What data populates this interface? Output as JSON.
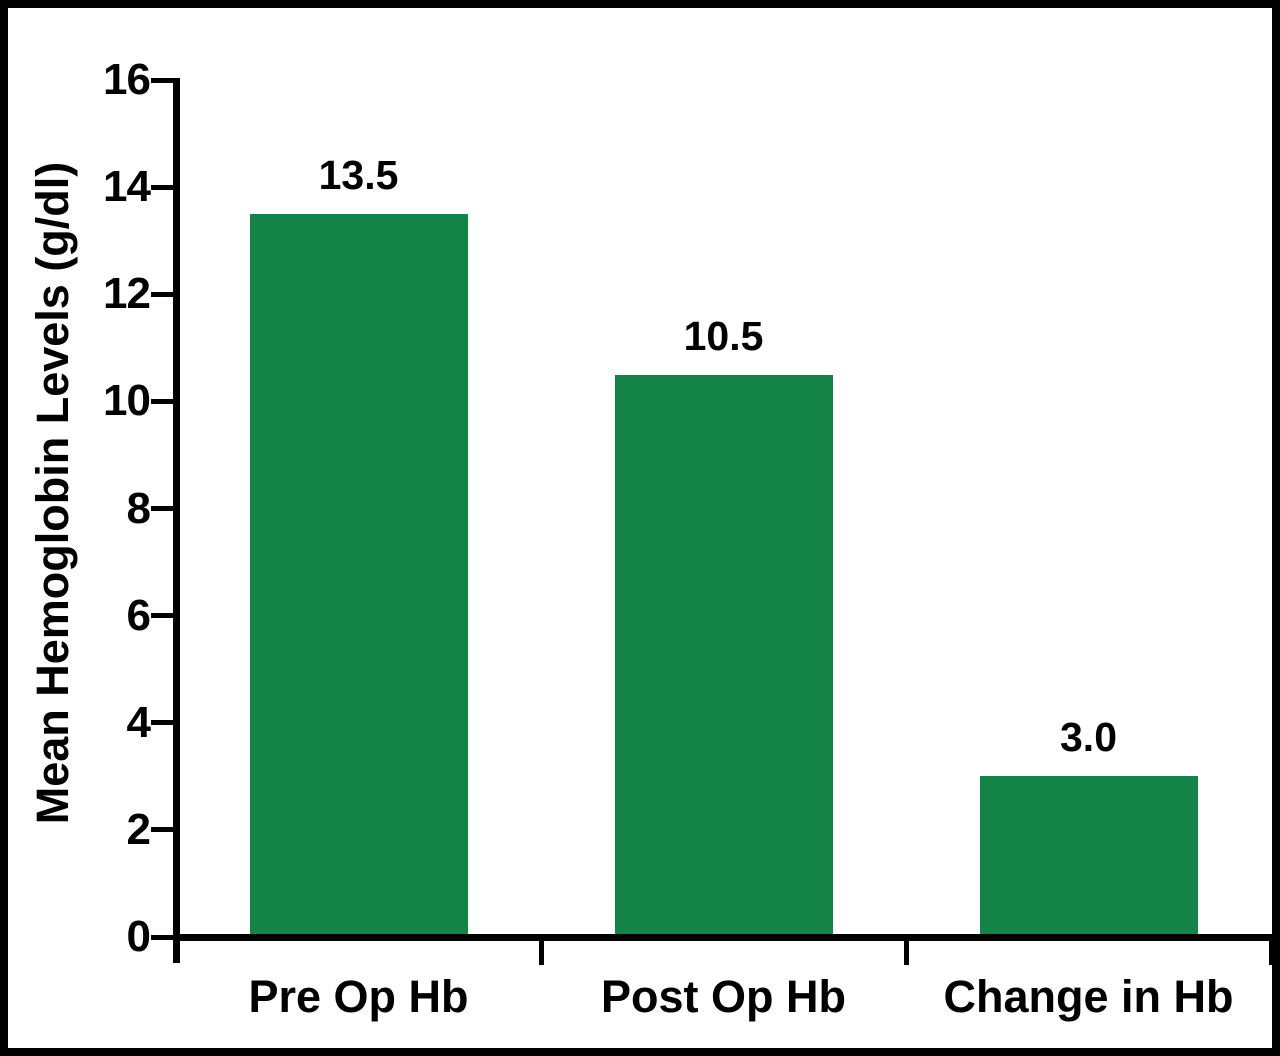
{
  "chart_data": {
    "type": "bar",
    "title": "",
    "categories": [
      "Pre Op Hb",
      "Post Op Hb",
      "Change in Hb"
    ],
    "values": [
      13.5,
      10.5,
      3.0
    ],
    "value_labels": [
      "13.5",
      "10.5",
      "3.0"
    ],
    "xlabel": "",
    "ylabel": "Mean Hemoglobin Levels (g/dl)",
    "ylim": [
      0,
      16
    ],
    "yticks": [
      0,
      2,
      4,
      6,
      8,
      10,
      12,
      14,
      16
    ],
    "ytick_labels": [
      "0",
      "2",
      "4",
      "6",
      "8",
      "10",
      "12",
      "14",
      "16"
    ],
    "grid": false,
    "legend_position": "none",
    "colors": {
      "bar": "#148347",
      "axis": "#000000",
      "text": "#000000",
      "background": "#ffffff",
      "frame_border": "#000000"
    }
  }
}
